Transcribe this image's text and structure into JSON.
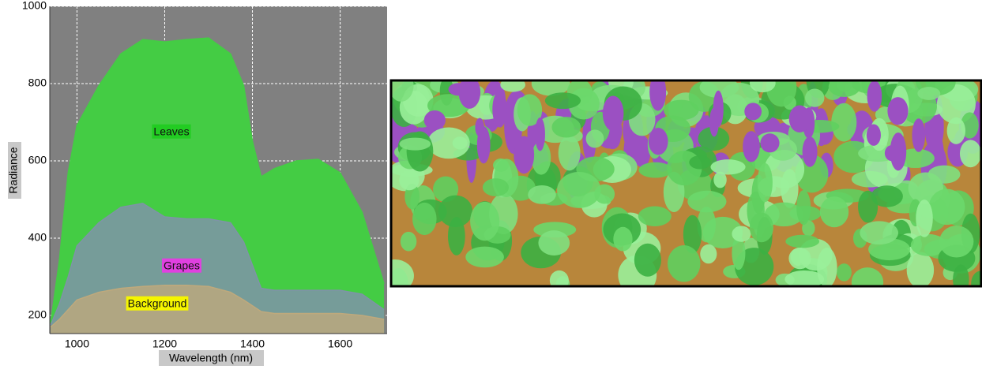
{
  "chart_data": {
    "type": "area",
    "x_label": "Wavelength (nm)",
    "y_label": "Radiance",
    "x": [
      940,
      960,
      980,
      1000,
      1050,
      1100,
      1150,
      1200,
      1250,
      1300,
      1350,
      1380,
      1400,
      1420,
      1450,
      1500,
      1550,
      1600,
      1650,
      1700
    ],
    "series": [
      {
        "name": "Leaves",
        "color": "#44cc44",
        "values": [
          180,
          344,
          570,
          692,
          795,
          877,
          914,
          908,
          914,
          918,
          877,
          795,
          651,
          559,
          580,
          600,
          604,
          569,
          467,
          282
        ]
      },
      {
        "name": "Grapes",
        "color": "#7f93a8",
        "values": [
          175,
          230,
          300,
          380,
          440,
          480,
          490,
          455,
          450,
          450,
          440,
          390,
          330,
          270,
          265,
          265,
          265,
          265,
          255,
          215
        ]
      },
      {
        "name": "Background",
        "color": "#bfa97c",
        "values": [
          170,
          190,
          215,
          240,
          260,
          270,
          275,
          278,
          278,
          275,
          260,
          240,
          225,
          210,
          205,
          205,
          205,
          205,
          200,
          190
        ]
      }
    ],
    "xlim": [
      938,
      1707
    ],
    "ylim": [
      153,
      1000
    ],
    "xticks": [
      1000,
      1200,
      1400,
      1600
    ],
    "yticks": [
      200,
      400,
      600,
      800,
      1000
    ],
    "grid": true
  }
}
